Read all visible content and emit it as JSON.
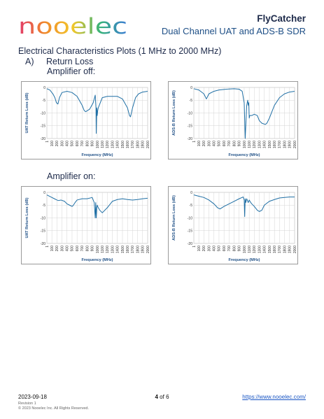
{
  "header": {
    "logo_text": "nooelec",
    "product_name": "FlyCatcher",
    "product_subtitle": "Dual Channel UAT and ADS-B SDR"
  },
  "content": {
    "title": "Electrical Characteristics Plots (1 MHz to 2000 MHz)",
    "section_letter": "A)",
    "section_name": "Return Loss",
    "amp_off_label": "Amplifier off:",
    "amp_on_label": "Amplifier on:"
  },
  "colors": {
    "line": "#1f6fa5",
    "accent": "#1e4f86",
    "grid": "#d4d4d4"
  },
  "chart_data": [
    {
      "type": "line",
      "xlabel": "Frequency (MHz)",
      "ylabel": "UAT Return Loss (dB)",
      "xlim": [
        1,
        2000
      ],
      "ylim": [
        -20,
        0
      ],
      "xticks": [
        "1",
        "100",
        "200",
        "300",
        "400",
        "500",
        "600",
        "700",
        "800",
        "900",
        "1000",
        "1100",
        "1200",
        "1300",
        "1400",
        "1500",
        "1600",
        "1700",
        "1800",
        "1900",
        "2000"
      ],
      "yticks": [
        "0",
        "-5",
        "-10",
        "-15",
        "-20"
      ],
      "grid": true,
      "series": [
        {
          "x": [
            1,
            60,
            120,
            160,
            190,
            220,
            250,
            300,
            400,
            500,
            600,
            700,
            740,
            770,
            850,
            920,
            960,
            975,
            980,
            990,
            1000,
            1010,
            1020,
            1040,
            1100,
            1200,
            1300,
            1400,
            1500,
            1600,
            1640,
            1660,
            1700,
            1760,
            1820,
            1900,
            2000
          ],
          "y": [
            -0.5,
            -1,
            -2.5,
            -4,
            -6,
            -6.5,
            -4,
            -2,
            -1.5,
            -2,
            -3.5,
            -7,
            -9,
            -9.5,
            -8.5,
            -6,
            -3,
            -8,
            -18,
            -8,
            -11,
            -9,
            -8,
            -7,
            -4,
            -3.5,
            -3.5,
            -3.5,
            -4.5,
            -8,
            -11,
            -11.5,
            -8,
            -4,
            -2.5,
            -1.8,
            -1.5
          ]
        }
      ]
    },
    {
      "type": "line",
      "xlabel": "Frequency (MHz)",
      "ylabel": "ADS-B Return Loss (dB)",
      "xlim": [
        1,
        2000
      ],
      "ylim": [
        -20,
        0
      ],
      "xticks": [
        "1",
        "100",
        "200",
        "300",
        "400",
        "500",
        "600",
        "700",
        "800",
        "900",
        "1000",
        "1100",
        "1200",
        "1300",
        "1400",
        "1500",
        "1600",
        "1700",
        "1800",
        "1900",
        "2000"
      ],
      "yticks": [
        "0",
        "-5",
        "-10",
        "-15",
        "-20"
      ],
      "grid": true,
      "series": [
        {
          "x": [
            1,
            100,
            200,
            250,
            300,
            400,
            500,
            600,
            700,
            800,
            900,
            960,
            1000,
            1020,
            1050,
            1070,
            1080,
            1090,
            1100,
            1110,
            1150,
            1200,
            1260,
            1300,
            1350,
            1420,
            1450,
            1500,
            1560,
            1600,
            1700,
            1800,
            1900,
            2000
          ],
          "y": [
            -0.5,
            -1,
            -2.5,
            -4.5,
            -2.5,
            -1.5,
            -1,
            -0.8,
            -0.6,
            -0.5,
            -0.7,
            -1.5,
            -6,
            -20,
            -7,
            -5,
            -7,
            -6,
            -12,
            -11,
            -11,
            -10.5,
            -11,
            -13,
            -14,
            -14.5,
            -14,
            -12,
            -9,
            -7,
            -4,
            -2.5,
            -1.8,
            -1.5
          ]
        }
      ]
    },
    {
      "type": "line",
      "xlabel": "Frequency (MHz)",
      "ylabel": "UAT Return Loss (dB)",
      "xlim": [
        1,
        2000
      ],
      "ylim": [
        -20,
        0
      ],
      "xticks": [
        "1",
        "100",
        "200",
        "300",
        "400",
        "500",
        "600",
        "700",
        "800",
        "900",
        "1000",
        "1100",
        "1200",
        "1300",
        "1400",
        "1500",
        "1600",
        "1700",
        "1800",
        "1900",
        "2000"
      ],
      "yticks": [
        "0",
        "-5",
        "-10",
        "-15",
        "-20"
      ],
      "grid": true,
      "series": [
        {
          "x": [
            1,
            80,
            150,
            200,
            230,
            280,
            350,
            400,
            450,
            500,
            520,
            560,
            600,
            700,
            800,
            900,
            940,
            960,
            970,
            980,
            990,
            1000,
            1020,
            1050,
            1100,
            1200,
            1300,
            1400,
            1500,
            1600,
            1700,
            1800,
            1900,
            2000
          ],
          "y": [
            -1,
            -1.8,
            -2.5,
            -3,
            -3.2,
            -3,
            -3.5,
            -4.5,
            -5,
            -5.5,
            -5.2,
            -4,
            -3,
            -2.5,
            -2.5,
            -2,
            -4,
            -10,
            -4,
            -10,
            -6,
            -5,
            -6,
            -7,
            -8,
            -6,
            -3.5,
            -2.8,
            -2.5,
            -2.8,
            -3,
            -2.8,
            -2.5,
            -2.3
          ]
        }
      ]
    },
    {
      "type": "line",
      "xlabel": "Frequency (MHz)",
      "ylabel": "ADS-B  Return Loss (dB)",
      "xlim": [
        1,
        2000
      ],
      "ylim": [
        -20,
        0
      ],
      "xticks": [
        "1",
        "100",
        "200",
        "300",
        "400",
        "500",
        "600",
        "700",
        "800",
        "900",
        "1000",
        "1100",
        "1200",
        "1300",
        "1400",
        "1500",
        "1600",
        "1700",
        "1800",
        "1900",
        "2000"
      ],
      "yticks": [
        "0",
        "-5",
        "-10",
        "-15",
        "-20"
      ],
      "grid": true,
      "series": [
        {
          "x": [
            1,
            100,
            200,
            300,
            400,
            470,
            520,
            600,
            700,
            800,
            900,
            980,
            1000,
            1010,
            1020,
            1030,
            1050,
            1080,
            1100,
            1130,
            1150,
            1200,
            1260,
            1300,
            1350,
            1400,
            1500,
            1600,
            1700,
            1800,
            1900,
            2000
          ],
          "y": [
            -1,
            -1.5,
            -2,
            -3,
            -4.5,
            -6,
            -6.5,
            -5.5,
            -4.5,
            -3.5,
            -2.5,
            -1.8,
            -3,
            -9.5,
            -2.5,
            -4,
            -2.5,
            -4,
            -3,
            -4,
            -4.5,
            -5.5,
            -7,
            -7.5,
            -7,
            -5,
            -3.5,
            -2.8,
            -2.2,
            -2,
            -1.8,
            -1.8
          ]
        }
      ]
    }
  ],
  "footer": {
    "date": "2023-09-18",
    "page_current": "4",
    "page_sep": "of",
    "page_total": "6",
    "url": "https://www.nooelec.com/",
    "revision": "Revision 1",
    "copyright": "© 2023 Nooelec Inc. All Rights Reserved."
  }
}
